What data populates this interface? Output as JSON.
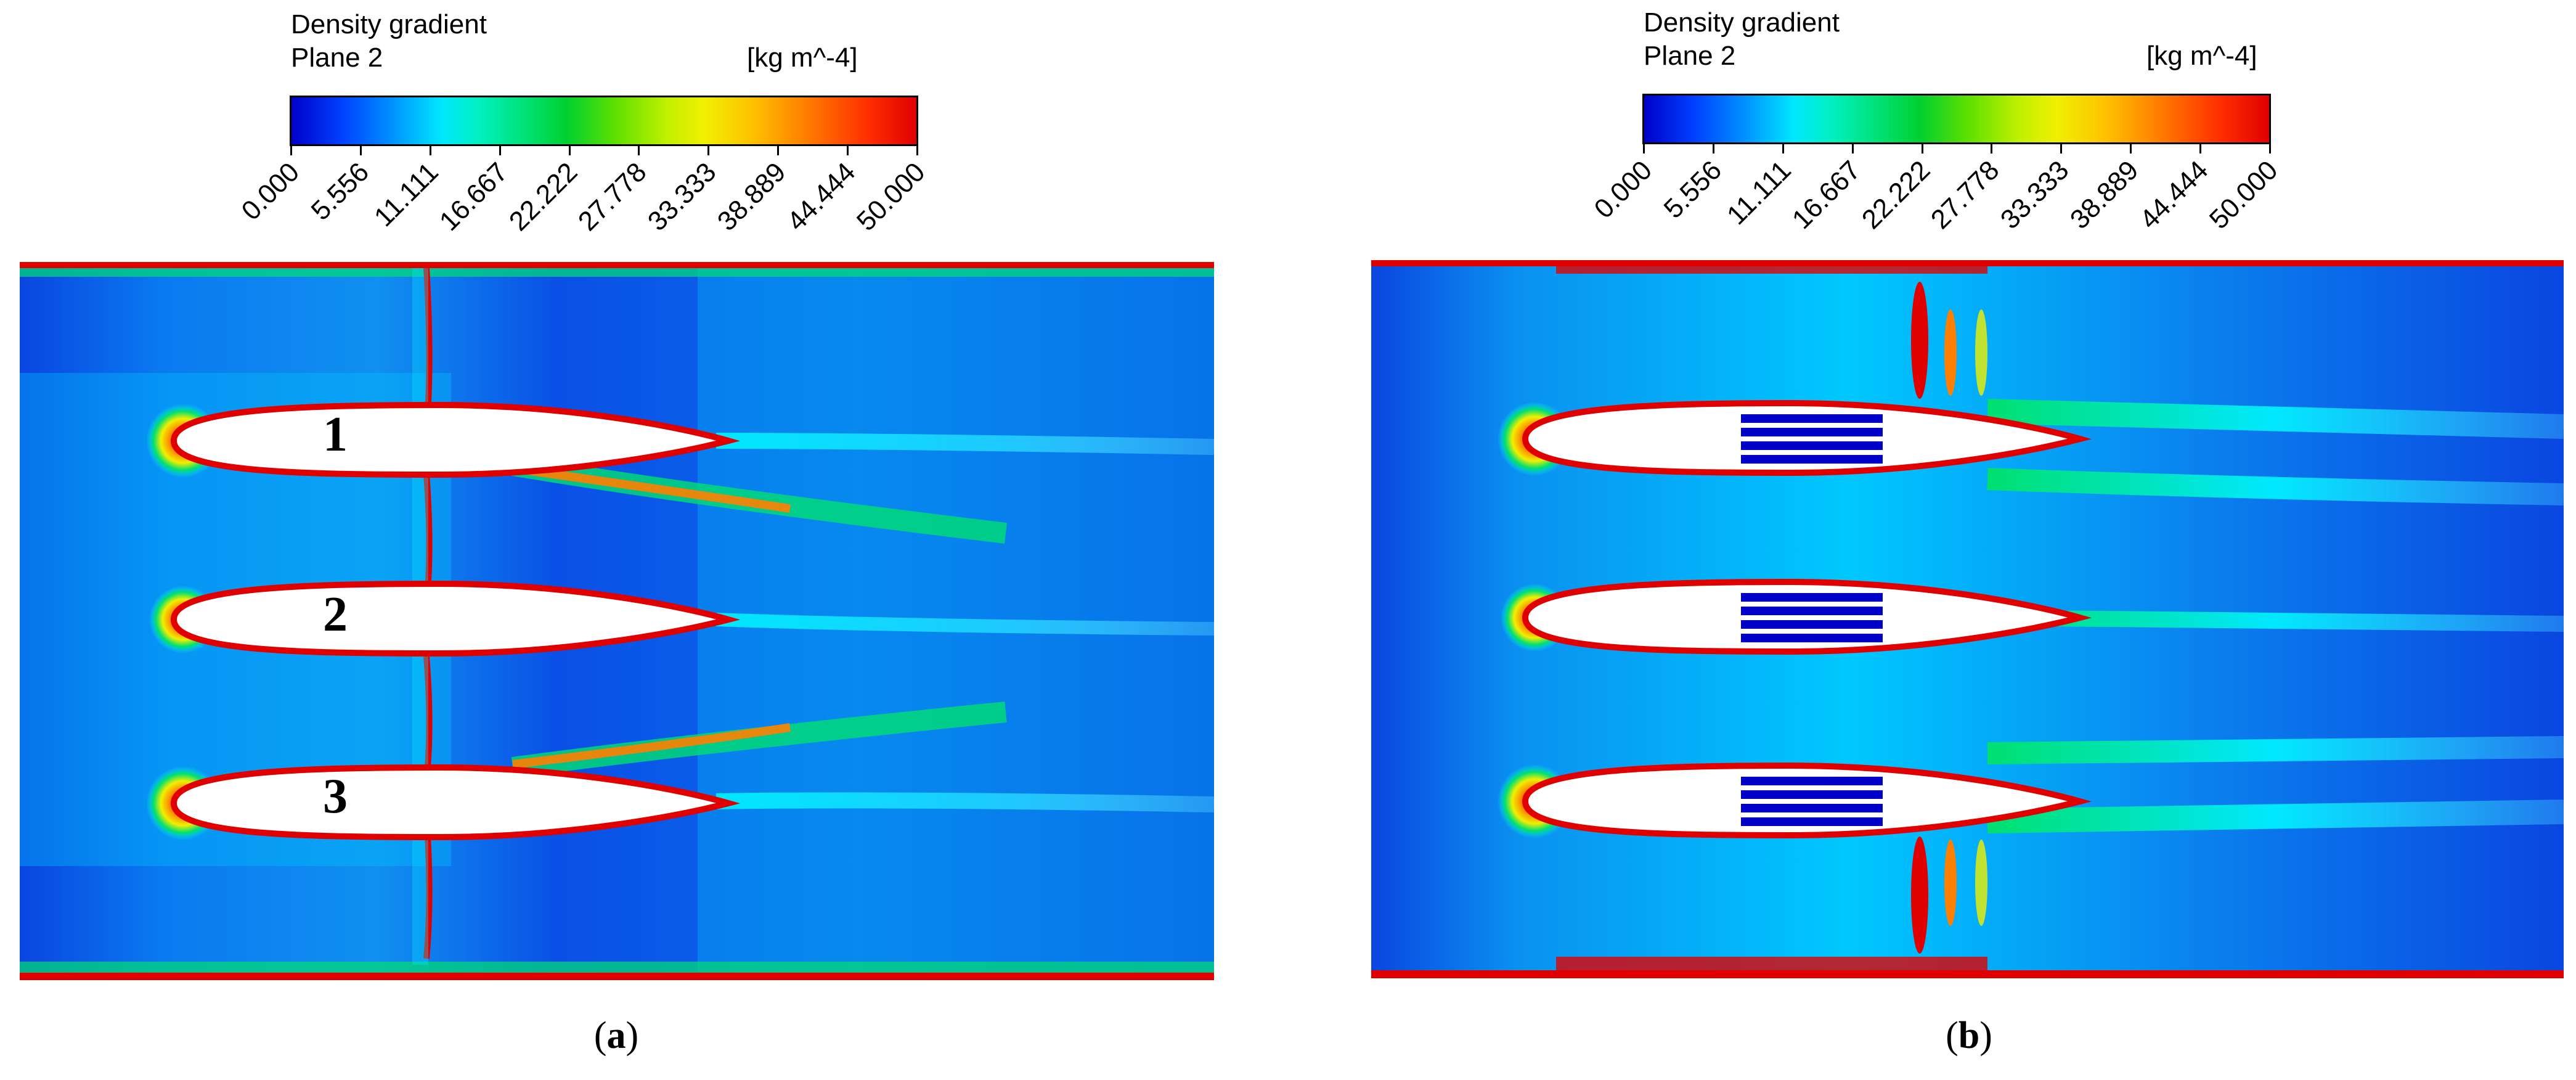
{
  "chart_data": [
    {
      "type": "heatmap",
      "panel_label": "a",
      "colorbar": {
        "title": "Density gradient",
        "subtitle": "Plane 2",
        "unit": "[kg m^-4]",
        "range": [
          0,
          50
        ],
        "ticks": [
          "0.000",
          "5.556",
          "11.111",
          "16.667",
          "22.222",
          "27.778",
          "33.333",
          "38.889",
          "44.444",
          "50.000"
        ]
      },
      "annotations": [
        "1",
        "2",
        "3"
      ]
    },
    {
      "type": "heatmap",
      "panel_label": "b",
      "colorbar": {
        "title": "Density gradient",
        "subtitle": "Plane 2",
        "unit": "[kg m^-4]",
        "range": [
          0,
          50
        ],
        "ticks": [
          "0.000",
          "5.556",
          "11.111",
          "16.667",
          "22.222",
          "27.778",
          "33.333",
          "38.889",
          "44.444",
          "50.000"
        ]
      },
      "annotations": []
    }
  ],
  "captions": {
    "a_open": "(",
    "a": "a",
    "a_close": ")",
    "b_open": "(",
    "b": "b",
    "b_close": ")"
  },
  "colors": {
    "background_field": "#0a55e6",
    "low": "#0000c8",
    "high": "#e00000",
    "airfoil": "#ffffff"
  }
}
